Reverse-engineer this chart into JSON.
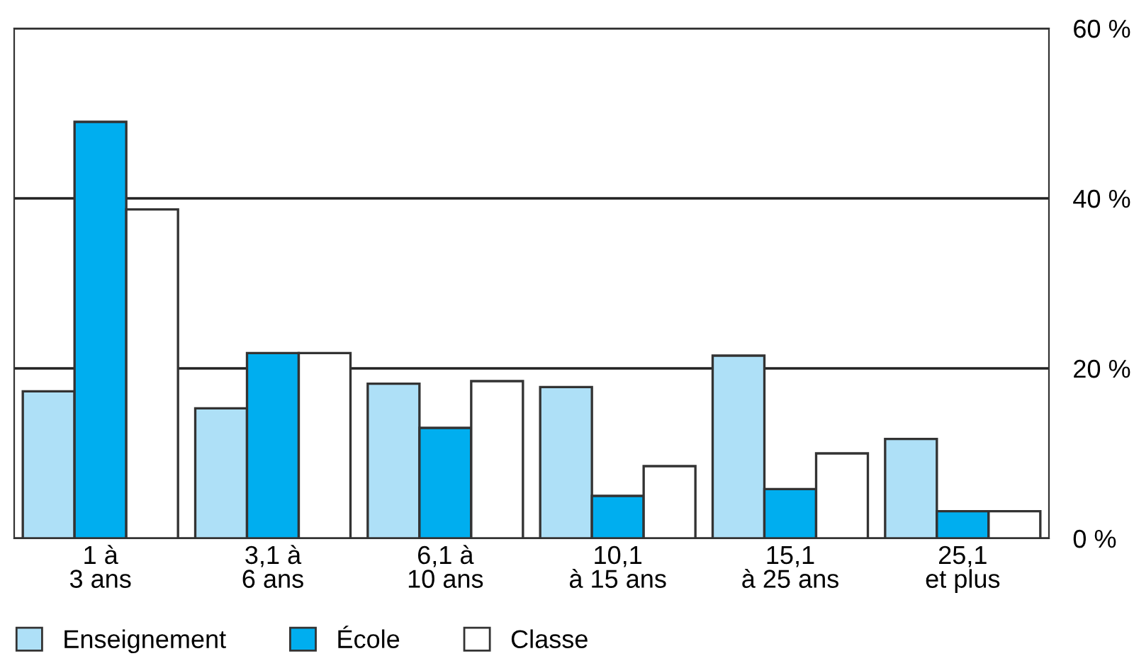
{
  "chart_data": {
    "type": "bar",
    "categories": [
      "1 à\n3 ans",
      "3,1 à\n6 ans",
      "6,1 à\n10 ans",
      "10,1\nà 15 ans",
      "15,1\nà 25 ans",
      "25,1\net plus"
    ],
    "series": [
      {
        "name": "Enseignement",
        "color": "#aee0f7",
        "values": [
          17.3,
          15.3,
          18.2,
          17.8,
          21.5,
          11.7
        ]
      },
      {
        "name": "École",
        "color": "#00aeef",
        "values": [
          49,
          21.8,
          13,
          5,
          5.8,
          3.2
        ]
      },
      {
        "name": "Classe",
        "color": "#ffffff",
        "values": [
          38.7,
          21.8,
          18.5,
          8.5,
          10,
          3.2
        ]
      }
    ],
    "ylim": [
      0,
      60
    ],
    "yticks": [
      {
        "value": 0,
        "label": "0 %"
      },
      {
        "value": 20,
        "label": "20 %"
      },
      {
        "value": 40,
        "label": "40 %"
      },
      {
        "value": 60,
        "label": "60 %"
      }
    ],
    "grid": "y",
    "legend": "bottom left"
  }
}
